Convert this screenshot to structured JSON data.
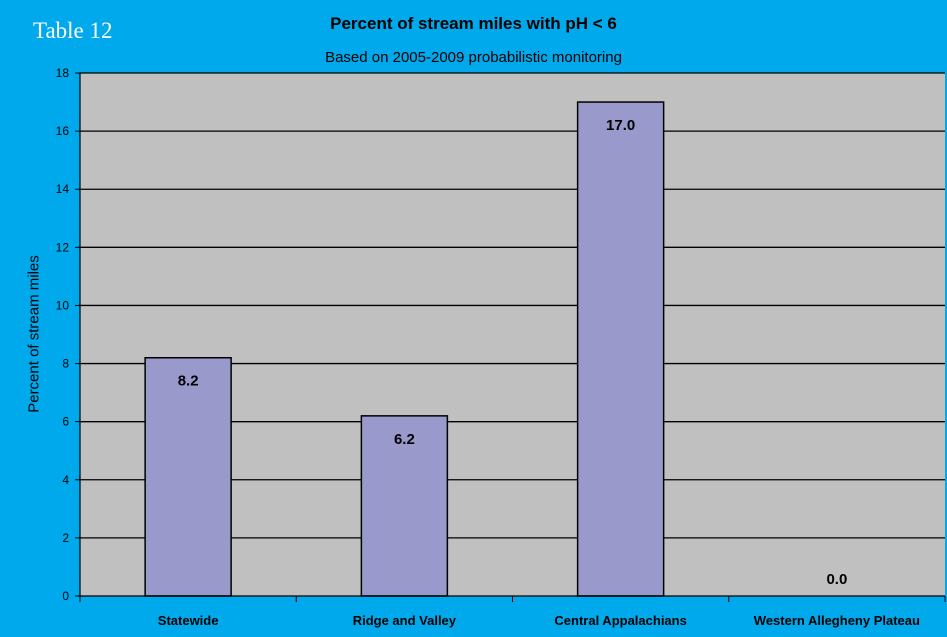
{
  "page": {
    "tag": "Table 12"
  },
  "chart_data": {
    "type": "bar",
    "title": "Percent of stream miles with pH < 6",
    "subtitle": "Based on 2005-2009 probabilistic monitoring",
    "xlabel": "",
    "ylabel": "Percent of stream miles",
    "ylim": [
      0,
      18
    ],
    "yticks": [
      0,
      2,
      4,
      6,
      8,
      10,
      12,
      14,
      16,
      18
    ],
    "categories": [
      "Statewide",
      "Ridge and Valley",
      "Central Appalachians",
      "Western Allegheny Plateau"
    ],
    "values": [
      8.2,
      6.2,
      17.0,
      0.0
    ],
    "data_labels": [
      "8.2",
      "6.2",
      "17.0",
      "0.0"
    ],
    "grid": true,
    "legend": "none",
    "colors": {
      "background": "#00A9EC",
      "plot_area": "#C0C0C0",
      "bar": "#9999CC",
      "gridline": "#000000"
    }
  }
}
